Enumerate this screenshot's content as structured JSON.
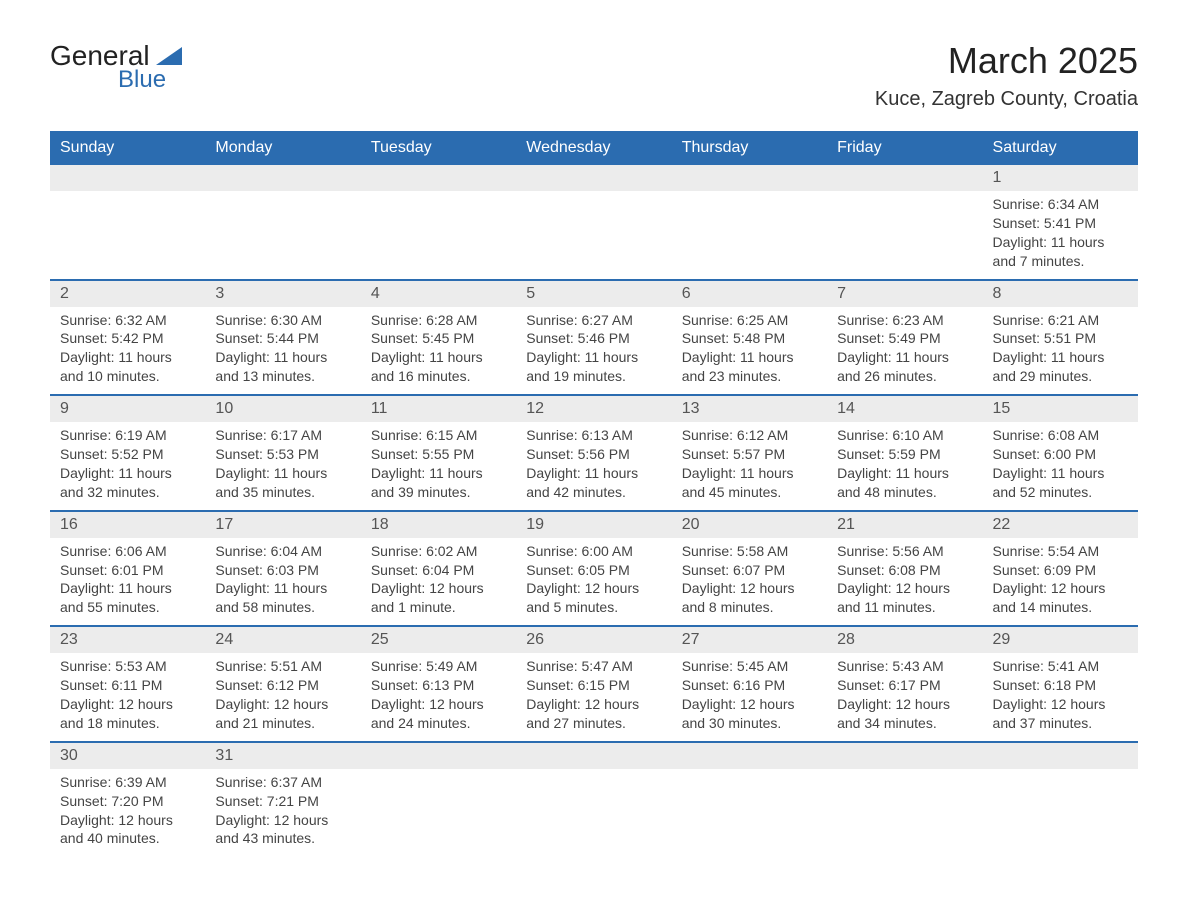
{
  "logo": {
    "text_top": "General",
    "text_bottom": "Blue",
    "triangle_color": "#2b6cb0",
    "text_top_color": "#222222",
    "text_bottom_color": "#2b6cb0"
  },
  "title": "March 2025",
  "location": "Kuce, Zagreb County, Croatia",
  "colors": {
    "header_bg": "#2b6cb0",
    "header_text": "#ffffff",
    "daynum_bg": "#ececec",
    "border": "#2b6cb0",
    "body_text": "#444444"
  },
  "day_headers": [
    "Sunday",
    "Monday",
    "Tuesday",
    "Wednesday",
    "Thursday",
    "Friday",
    "Saturday"
  ],
  "weeks": [
    [
      null,
      null,
      null,
      null,
      null,
      null,
      {
        "n": "1",
        "sunrise": "Sunrise: 6:34 AM",
        "sunset": "Sunset: 5:41 PM",
        "daylight": "Daylight: 11 hours and 7 minutes."
      }
    ],
    [
      {
        "n": "2",
        "sunrise": "Sunrise: 6:32 AM",
        "sunset": "Sunset: 5:42 PM",
        "daylight": "Daylight: 11 hours and 10 minutes."
      },
      {
        "n": "3",
        "sunrise": "Sunrise: 6:30 AM",
        "sunset": "Sunset: 5:44 PM",
        "daylight": "Daylight: 11 hours and 13 minutes."
      },
      {
        "n": "4",
        "sunrise": "Sunrise: 6:28 AM",
        "sunset": "Sunset: 5:45 PM",
        "daylight": "Daylight: 11 hours and 16 minutes."
      },
      {
        "n": "5",
        "sunrise": "Sunrise: 6:27 AM",
        "sunset": "Sunset: 5:46 PM",
        "daylight": "Daylight: 11 hours and 19 minutes."
      },
      {
        "n": "6",
        "sunrise": "Sunrise: 6:25 AM",
        "sunset": "Sunset: 5:48 PM",
        "daylight": "Daylight: 11 hours and 23 minutes."
      },
      {
        "n": "7",
        "sunrise": "Sunrise: 6:23 AM",
        "sunset": "Sunset: 5:49 PM",
        "daylight": "Daylight: 11 hours and 26 minutes."
      },
      {
        "n": "8",
        "sunrise": "Sunrise: 6:21 AM",
        "sunset": "Sunset: 5:51 PM",
        "daylight": "Daylight: 11 hours and 29 minutes."
      }
    ],
    [
      {
        "n": "9",
        "sunrise": "Sunrise: 6:19 AM",
        "sunset": "Sunset: 5:52 PM",
        "daylight": "Daylight: 11 hours and 32 minutes."
      },
      {
        "n": "10",
        "sunrise": "Sunrise: 6:17 AM",
        "sunset": "Sunset: 5:53 PM",
        "daylight": "Daylight: 11 hours and 35 minutes."
      },
      {
        "n": "11",
        "sunrise": "Sunrise: 6:15 AM",
        "sunset": "Sunset: 5:55 PM",
        "daylight": "Daylight: 11 hours and 39 minutes."
      },
      {
        "n": "12",
        "sunrise": "Sunrise: 6:13 AM",
        "sunset": "Sunset: 5:56 PM",
        "daylight": "Daylight: 11 hours and 42 minutes."
      },
      {
        "n": "13",
        "sunrise": "Sunrise: 6:12 AM",
        "sunset": "Sunset: 5:57 PM",
        "daylight": "Daylight: 11 hours and 45 minutes."
      },
      {
        "n": "14",
        "sunrise": "Sunrise: 6:10 AM",
        "sunset": "Sunset: 5:59 PM",
        "daylight": "Daylight: 11 hours and 48 minutes."
      },
      {
        "n": "15",
        "sunrise": "Sunrise: 6:08 AM",
        "sunset": "Sunset: 6:00 PM",
        "daylight": "Daylight: 11 hours and 52 minutes."
      }
    ],
    [
      {
        "n": "16",
        "sunrise": "Sunrise: 6:06 AM",
        "sunset": "Sunset: 6:01 PM",
        "daylight": "Daylight: 11 hours and 55 minutes."
      },
      {
        "n": "17",
        "sunrise": "Sunrise: 6:04 AM",
        "sunset": "Sunset: 6:03 PM",
        "daylight": "Daylight: 11 hours and 58 minutes."
      },
      {
        "n": "18",
        "sunrise": "Sunrise: 6:02 AM",
        "sunset": "Sunset: 6:04 PM",
        "daylight": "Daylight: 12 hours and 1 minute."
      },
      {
        "n": "19",
        "sunrise": "Sunrise: 6:00 AM",
        "sunset": "Sunset: 6:05 PM",
        "daylight": "Daylight: 12 hours and 5 minutes."
      },
      {
        "n": "20",
        "sunrise": "Sunrise: 5:58 AM",
        "sunset": "Sunset: 6:07 PM",
        "daylight": "Daylight: 12 hours and 8 minutes."
      },
      {
        "n": "21",
        "sunrise": "Sunrise: 5:56 AM",
        "sunset": "Sunset: 6:08 PM",
        "daylight": "Daylight: 12 hours and 11 minutes."
      },
      {
        "n": "22",
        "sunrise": "Sunrise: 5:54 AM",
        "sunset": "Sunset: 6:09 PM",
        "daylight": "Daylight: 12 hours and 14 minutes."
      }
    ],
    [
      {
        "n": "23",
        "sunrise": "Sunrise: 5:53 AM",
        "sunset": "Sunset: 6:11 PM",
        "daylight": "Daylight: 12 hours and 18 minutes."
      },
      {
        "n": "24",
        "sunrise": "Sunrise: 5:51 AM",
        "sunset": "Sunset: 6:12 PM",
        "daylight": "Daylight: 12 hours and 21 minutes."
      },
      {
        "n": "25",
        "sunrise": "Sunrise: 5:49 AM",
        "sunset": "Sunset: 6:13 PM",
        "daylight": "Daylight: 12 hours and 24 minutes."
      },
      {
        "n": "26",
        "sunrise": "Sunrise: 5:47 AM",
        "sunset": "Sunset: 6:15 PM",
        "daylight": "Daylight: 12 hours and 27 minutes."
      },
      {
        "n": "27",
        "sunrise": "Sunrise: 5:45 AM",
        "sunset": "Sunset: 6:16 PM",
        "daylight": "Daylight: 12 hours and 30 minutes."
      },
      {
        "n": "28",
        "sunrise": "Sunrise: 5:43 AM",
        "sunset": "Sunset: 6:17 PM",
        "daylight": "Daylight: 12 hours and 34 minutes."
      },
      {
        "n": "29",
        "sunrise": "Sunrise: 5:41 AM",
        "sunset": "Sunset: 6:18 PM",
        "daylight": "Daylight: 12 hours and 37 minutes."
      }
    ],
    [
      {
        "n": "30",
        "sunrise": "Sunrise: 6:39 AM",
        "sunset": "Sunset: 7:20 PM",
        "daylight": "Daylight: 12 hours and 40 minutes."
      },
      {
        "n": "31",
        "sunrise": "Sunrise: 6:37 AM",
        "sunset": "Sunset: 7:21 PM",
        "daylight": "Daylight: 12 hours and 43 minutes."
      },
      null,
      null,
      null,
      null,
      null
    ]
  ]
}
